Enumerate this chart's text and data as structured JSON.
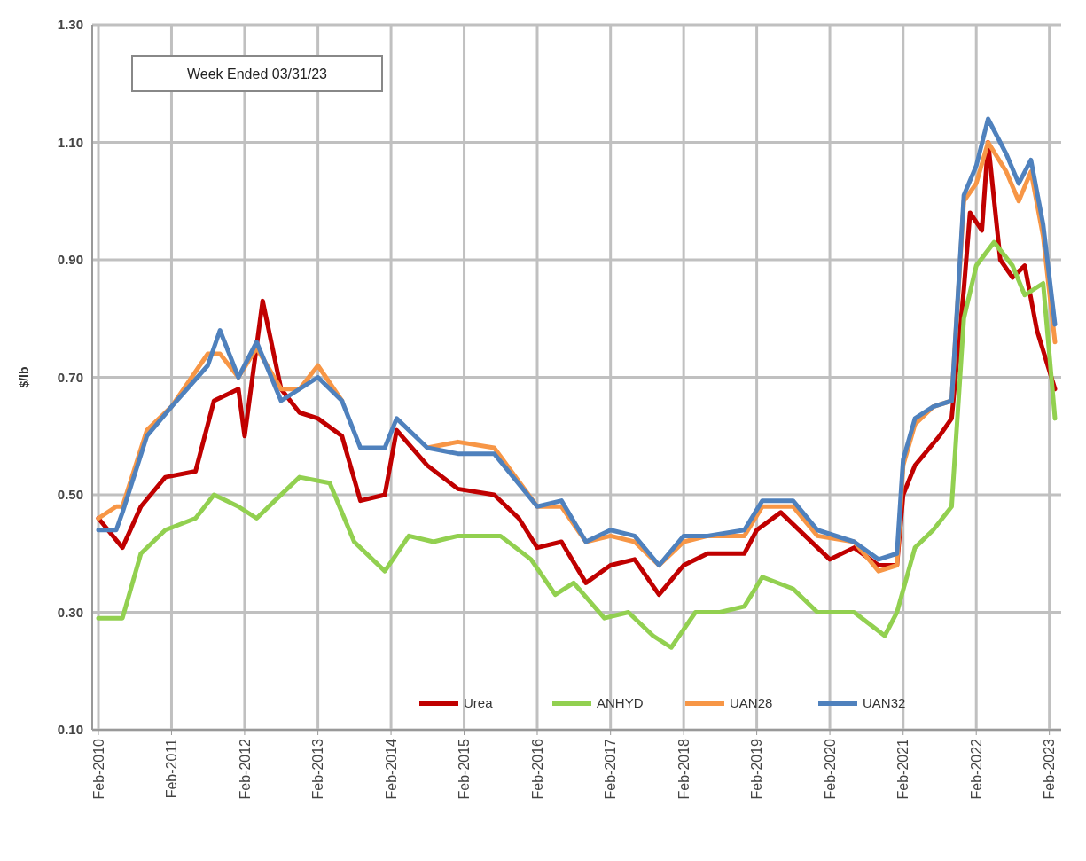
{
  "chart_data": {
    "type": "line",
    "ylabel": "$/lb",
    "annotations": [
      "Week Ended 03/31/23"
    ],
    "legend": "bottom",
    "grid": true,
    "line_style": "solid",
    "marker": "none",
    "xlim": [
      "2010-01",
      "2023-04"
    ],
    "ylim": [
      0.1,
      1.3
    ],
    "yticks": [
      {
        "value": 0.1,
        "label": "0.10"
      },
      {
        "value": 0.3,
        "label": "0.30"
      },
      {
        "value": 0.5,
        "label": "0.50"
      },
      {
        "value": 0.7,
        "label": "0.70"
      },
      {
        "value": 0.9,
        "label": "0.90"
      },
      {
        "value": 1.1,
        "label": "1.10"
      },
      {
        "value": 1.3,
        "label": "1.30"
      }
    ],
    "xticks": [
      {
        "value": "2010-02",
        "label": "Feb-2010"
      },
      {
        "value": "2011-02",
        "label": "Feb-2011"
      },
      {
        "value": "2012-02",
        "label": "Feb-2012"
      },
      {
        "value": "2013-02",
        "label": "Feb-2013"
      },
      {
        "value": "2014-02",
        "label": "Feb-2014"
      },
      {
        "value": "2015-02",
        "label": "Feb-2015"
      },
      {
        "value": "2016-02",
        "label": "Feb-2016"
      },
      {
        "value": "2017-02",
        "label": "Feb-2017"
      },
      {
        "value": "2018-02",
        "label": "Feb-2018"
      },
      {
        "value": "2019-02",
        "label": "Feb-2019"
      },
      {
        "value": "2020-02",
        "label": "Feb-2020"
      },
      {
        "value": "2021-02",
        "label": "Feb-2021"
      },
      {
        "value": "2022-02",
        "label": "Feb-2022"
      },
      {
        "value": "2023-02",
        "label": "Feb-2023"
      }
    ],
    "series": [
      {
        "name": "Urea",
        "color": "#c00000",
        "x": [
          "2010-02",
          "2010-06",
          "2010-09",
          "2011-01",
          "2011-06",
          "2011-09",
          "2012-01",
          "2012-02",
          "2012-05",
          "2012-08",
          "2012-11",
          "2013-02",
          "2013-06",
          "2013-09",
          "2014-01",
          "2014-03",
          "2014-08",
          "2015-01",
          "2015-07",
          "2015-11",
          "2016-02",
          "2016-06",
          "2016-10",
          "2017-02",
          "2017-06",
          "2017-10",
          "2018-02",
          "2018-06",
          "2018-12",
          "2019-02",
          "2019-06",
          "2019-10",
          "2020-02",
          "2020-06",
          "2020-10",
          "2021-01",
          "2021-02",
          "2021-04",
          "2021-08",
          "2021-10",
          "2021-12",
          "2022-01",
          "2022-03",
          "2022-04",
          "2022-06",
          "2022-08",
          "2022-10",
          "2022-12",
          "2023-03"
        ],
        "values": [
          0.46,
          0.41,
          0.48,
          0.53,
          0.54,
          0.66,
          0.68,
          0.6,
          0.83,
          0.68,
          0.64,
          0.63,
          0.6,
          0.49,
          0.5,
          0.61,
          0.55,
          0.51,
          0.5,
          0.46,
          0.41,
          0.42,
          0.35,
          0.38,
          0.39,
          0.33,
          0.38,
          0.4,
          0.4,
          0.44,
          0.47,
          0.43,
          0.39,
          0.41,
          0.38,
          0.38,
          0.5,
          0.55,
          0.6,
          0.63,
          0.85,
          0.98,
          0.95,
          1.1,
          0.9,
          0.87,
          0.89,
          0.78,
          0.68
        ]
      },
      {
        "name": "ANHYD",
        "color": "#92d050",
        "x": [
          "2010-02",
          "2010-06",
          "2010-09",
          "2011-01",
          "2011-06",
          "2011-09",
          "2012-01",
          "2012-04",
          "2012-07",
          "2012-11",
          "2013-04",
          "2013-08",
          "2014-01",
          "2014-05",
          "2014-09",
          "2015-01",
          "2015-08",
          "2016-01",
          "2016-05",
          "2016-08",
          "2017-01",
          "2017-05",
          "2017-09",
          "2017-12",
          "2018-04",
          "2018-08",
          "2018-12",
          "2019-03",
          "2019-08",
          "2019-12",
          "2020-06",
          "2020-11",
          "2021-01",
          "2021-04",
          "2021-07",
          "2021-10",
          "2021-12",
          "2022-02",
          "2022-05",
          "2022-08",
          "2022-10",
          "2023-01",
          "2023-03"
        ],
        "values": [
          0.29,
          0.29,
          0.4,
          0.44,
          0.46,
          0.5,
          0.48,
          0.46,
          0.49,
          0.53,
          0.52,
          0.42,
          0.37,
          0.43,
          0.42,
          0.43,
          0.43,
          0.39,
          0.33,
          0.35,
          0.29,
          0.3,
          0.26,
          0.24,
          0.3,
          0.3,
          0.31,
          0.36,
          0.34,
          0.3,
          0.3,
          0.26,
          0.3,
          0.41,
          0.44,
          0.48,
          0.8,
          0.89,
          0.93,
          0.89,
          0.84,
          0.86,
          0.63
        ]
      },
      {
        "name": "UAN28",
        "color": "#f79646",
        "x": [
          "2010-02",
          "2010-05",
          "2010-06",
          "2010-10",
          "2011-02",
          "2011-08",
          "2011-10",
          "2012-01",
          "2012-04",
          "2012-08",
          "2012-11",
          "2013-02",
          "2013-06",
          "2013-09",
          "2014-01",
          "2014-03",
          "2014-08",
          "2015-01",
          "2015-07",
          "2016-02",
          "2016-06",
          "2016-10",
          "2017-02",
          "2017-06",
          "2017-10",
          "2018-02",
          "2018-06",
          "2018-12",
          "2019-03",
          "2019-08",
          "2019-12",
          "2020-06",
          "2020-10",
          "2021-01",
          "2021-02",
          "2021-04",
          "2021-07",
          "2021-10",
          "2021-12",
          "2022-02",
          "2022-04",
          "2022-07",
          "2022-09",
          "2022-11",
          "2023-01",
          "2023-03"
        ],
        "values": [
          0.46,
          0.48,
          0.48,
          0.61,
          0.65,
          0.74,
          0.74,
          0.7,
          0.75,
          0.68,
          0.68,
          0.72,
          0.66,
          null,
          null,
          null,
          0.58,
          0.59,
          0.58,
          0.48,
          0.48,
          0.42,
          0.43,
          0.42,
          0.38,
          0.42,
          0.43,
          0.43,
          0.48,
          0.48,
          0.43,
          0.42,
          0.37,
          0.38,
          0.55,
          0.62,
          0.65,
          0.66,
          1.0,
          1.03,
          1.1,
          1.05,
          1.0,
          1.05,
          0.94,
          0.76
        ]
      },
      {
        "name": "UAN32",
        "color": "#4f81bd",
        "x": [
          "2010-02",
          "2010-05",
          "2010-06",
          "2010-10",
          "2011-02",
          "2011-08",
          "2011-10",
          "2012-01",
          "2012-04",
          "2012-08",
          "2012-11",
          "2013-02",
          "2013-06",
          "2013-09",
          "2014-01",
          "2014-03",
          "2014-08",
          "2015-01",
          "2015-07",
          "2016-02",
          "2016-06",
          "2016-10",
          "2017-02",
          "2017-06",
          "2017-10",
          "2018-02",
          "2018-06",
          "2018-12",
          "2019-03",
          "2019-08",
          "2019-12",
          "2020-06",
          "2020-10",
          "2021-01",
          "2021-02",
          "2021-04",
          "2021-07",
          "2021-10",
          "2021-12",
          "2022-02",
          "2022-04",
          "2022-07",
          "2022-09",
          "2022-11",
          "2023-01",
          "2023-03"
        ],
        "values": [
          0.44,
          0.44,
          0.47,
          0.6,
          0.65,
          0.72,
          0.78,
          0.7,
          0.76,
          0.66,
          0.68,
          0.7,
          0.66,
          0.58,
          0.58,
          0.63,
          0.58,
          0.57,
          0.57,
          0.48,
          0.49,
          0.42,
          0.44,
          0.43,
          0.38,
          0.43,
          0.43,
          0.44,
          0.49,
          0.49,
          0.44,
          0.42,
          0.39,
          0.4,
          0.56,
          0.63,
          0.65,
          0.66,
          1.01,
          1.06,
          1.14,
          1.08,
          1.03,
          1.07,
          0.96,
          0.79
        ]
      }
    ]
  }
}
